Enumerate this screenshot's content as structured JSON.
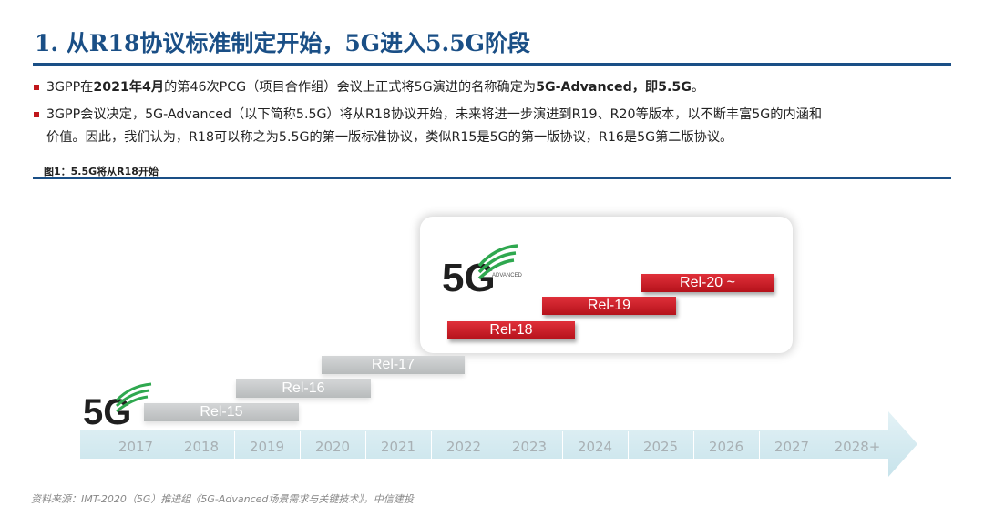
{
  "header": {
    "title": "1. 从R18协议标准制定开始，5G进入5.5G阶段"
  },
  "bullets": [
    {
      "pre": "3GPP在",
      "bold1": "2021年4月",
      "mid": "的第46次PCG（项目合作组）会议上正式将5G演进的名称确定为",
      "bold2": "5G-Advanced，即5.5G",
      "post": "。"
    },
    {
      "line1": "3GPP会议决定，5G-Advanced（以下简称5.5G）将从R18协议开始，未来将进一步演进到R19、R20等版本，以不断丰富5G的内涵和",
      "line2": "价值。因此，我们认为，R18可以称之为5.5G的第一版标准协议，类似R15是5G的第一版协议，R16是5G第二版协议。"
    }
  ],
  "figure": {
    "label": "图1：5.5G将从R18开始",
    "years": [
      "2017",
      "2018",
      "2019",
      "2020",
      "2021",
      "2022",
      "2023",
      "2024",
      "2025",
      "2026",
      "2027",
      "2028+"
    ],
    "releases": [
      {
        "label": "Rel-15",
        "style": "grey"
      },
      {
        "label": "Rel-16",
        "style": "grey"
      },
      {
        "label": "Rel-17",
        "style": "grey"
      },
      {
        "label": "Rel-18",
        "style": "red"
      },
      {
        "label": "Rel-19",
        "style": "red"
      },
      {
        "label": "Rel-20 ~",
        "style": "red"
      }
    ],
    "logo_small": {
      "text": "5G"
    },
    "logo_large": {
      "text": "5G",
      "sub": "ADVANCED"
    },
    "colors": {
      "timeline": "#cfe7ee",
      "red": "#c8161e",
      "grey": "#c4c6c7",
      "logo_green": "#2fa84f"
    }
  },
  "source": {
    "text": "资料来源：IMT-2020（5G）推进组《5G-Advanced场景需求与关键技术》，中信建投"
  }
}
